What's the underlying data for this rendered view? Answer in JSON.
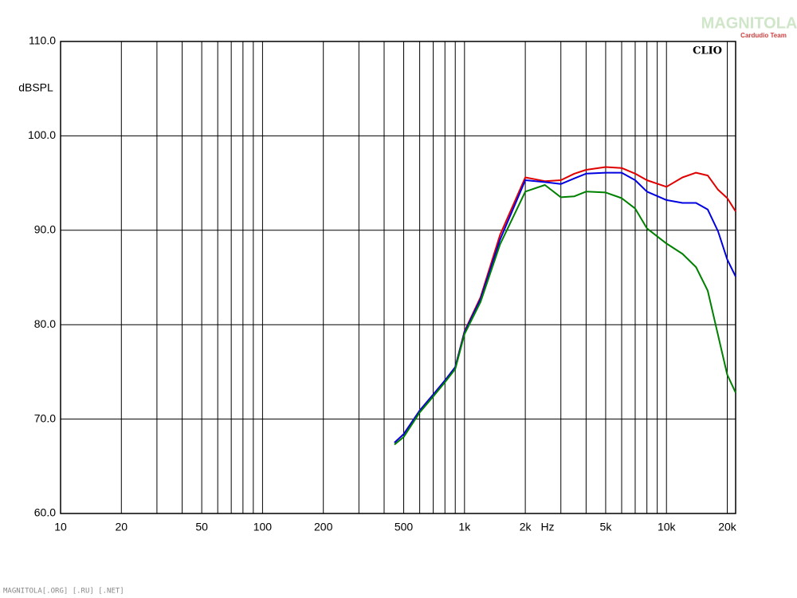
{
  "chart_data": {
    "type": "line",
    "brand": "CLIO",
    "ylabel": "dBSPL",
    "xlabel": "Hz",
    "log_x": true,
    "grid": true,
    "xlim": [
      10,
      22000
    ],
    "ylim": [
      60,
      110
    ],
    "xticks": [
      10,
      20,
      50,
      100,
      200,
      500,
      {
        "value": 1000,
        "label": "1k"
      },
      {
        "value": 2000,
        "label": "2k"
      },
      {
        "value": 5000,
        "label": "5k"
      },
      {
        "value": 10000,
        "label": "10k"
      },
      {
        "value": 20000,
        "label": "20k"
      }
    ],
    "xminor": [
      30,
      40,
      60,
      70,
      80,
      90,
      300,
      400,
      600,
      700,
      800,
      900,
      3000,
      4000,
      6000,
      7000,
      8000,
      9000
    ],
    "yticks": [
      {
        "value": 60,
        "label": "60.0"
      },
      {
        "value": 70,
        "label": "70.0"
      },
      {
        "value": 80,
        "label": "80.0"
      },
      {
        "value": 90,
        "label": "90.0"
      },
      {
        "value": 100,
        "label": "100.0"
      },
      {
        "value": 110,
        "label": "110.0"
      }
    ],
    "x": [
      450,
      500,
      600,
      700,
      800,
      900,
      1000,
      1200,
      1500,
      2000,
      2500,
      3000,
      3500,
      4000,
      5000,
      6000,
      7000,
      8000,
      10000,
      12000,
      14000,
      16000,
      18000,
      20000,
      22000
    ],
    "series": [
      {
        "color": "#e00000",
        "values": [
          67.5,
          68.4,
          70.9,
          72.6,
          74.1,
          75.5,
          79.3,
          82.9,
          89.5,
          95.6,
          95.2,
          95.3,
          96.0,
          96.4,
          96.7,
          96.6,
          96.0,
          95.3,
          94.6,
          95.6,
          96.1,
          95.8,
          94.3,
          93.4,
          92.0
        ]
      },
      {
        "color": "#0000e0",
        "values": [
          67.5,
          68.4,
          70.9,
          72.6,
          74.1,
          75.5,
          79.2,
          82.7,
          89.0,
          95.3,
          95.1,
          94.9,
          95.5,
          96.0,
          96.1,
          96.1,
          95.3,
          94.1,
          93.2,
          92.9,
          92.9,
          92.2,
          89.9,
          86.9,
          85.1
        ]
      },
      {
        "color": "#008000",
        "values": [
          67.3,
          68.1,
          70.7,
          72.4,
          73.9,
          75.3,
          79.0,
          82.4,
          88.5,
          94.1,
          94.8,
          93.5,
          93.6,
          94.1,
          94.0,
          93.4,
          92.3,
          90.2,
          88.6,
          87.5,
          86.1,
          83.6,
          78.9,
          74.7,
          72.8
        ]
      }
    ]
  },
  "watermark_title": "MAGNITOLA",
  "watermark_subtitle": "Cardudio Team",
  "footer": "MAGNITOLA[.ORG] [.RU] [.NET]"
}
